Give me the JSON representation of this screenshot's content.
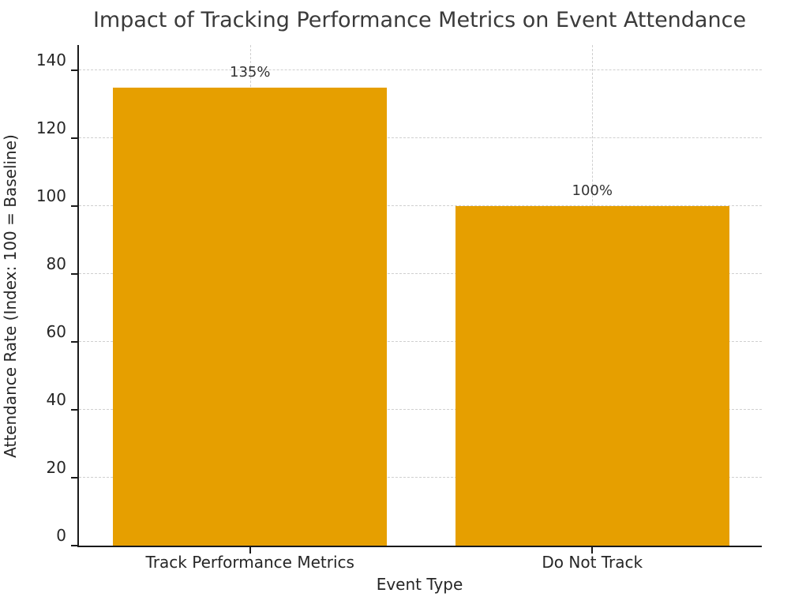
{
  "chart_data": {
    "type": "bar",
    "title": "Impact of Tracking Performance Metrics on Event Attendance",
    "xlabel": "Event Type",
    "ylabel": "Attendance Rate (Index: 100 = Baseline)",
    "categories": [
      "Track Performance Metrics",
      "Do Not Track"
    ],
    "values": [
      135,
      100
    ],
    "bar_labels": [
      "135%",
      "100%"
    ],
    "yticks": [
      0,
      20,
      40,
      60,
      80,
      100,
      120,
      140
    ],
    "ylim": [
      0,
      148
    ],
    "bar_color": "#E69F00",
    "bar_width_fraction": 0.4,
    "grid": "dashed-both-axes",
    "legend": "none"
  }
}
